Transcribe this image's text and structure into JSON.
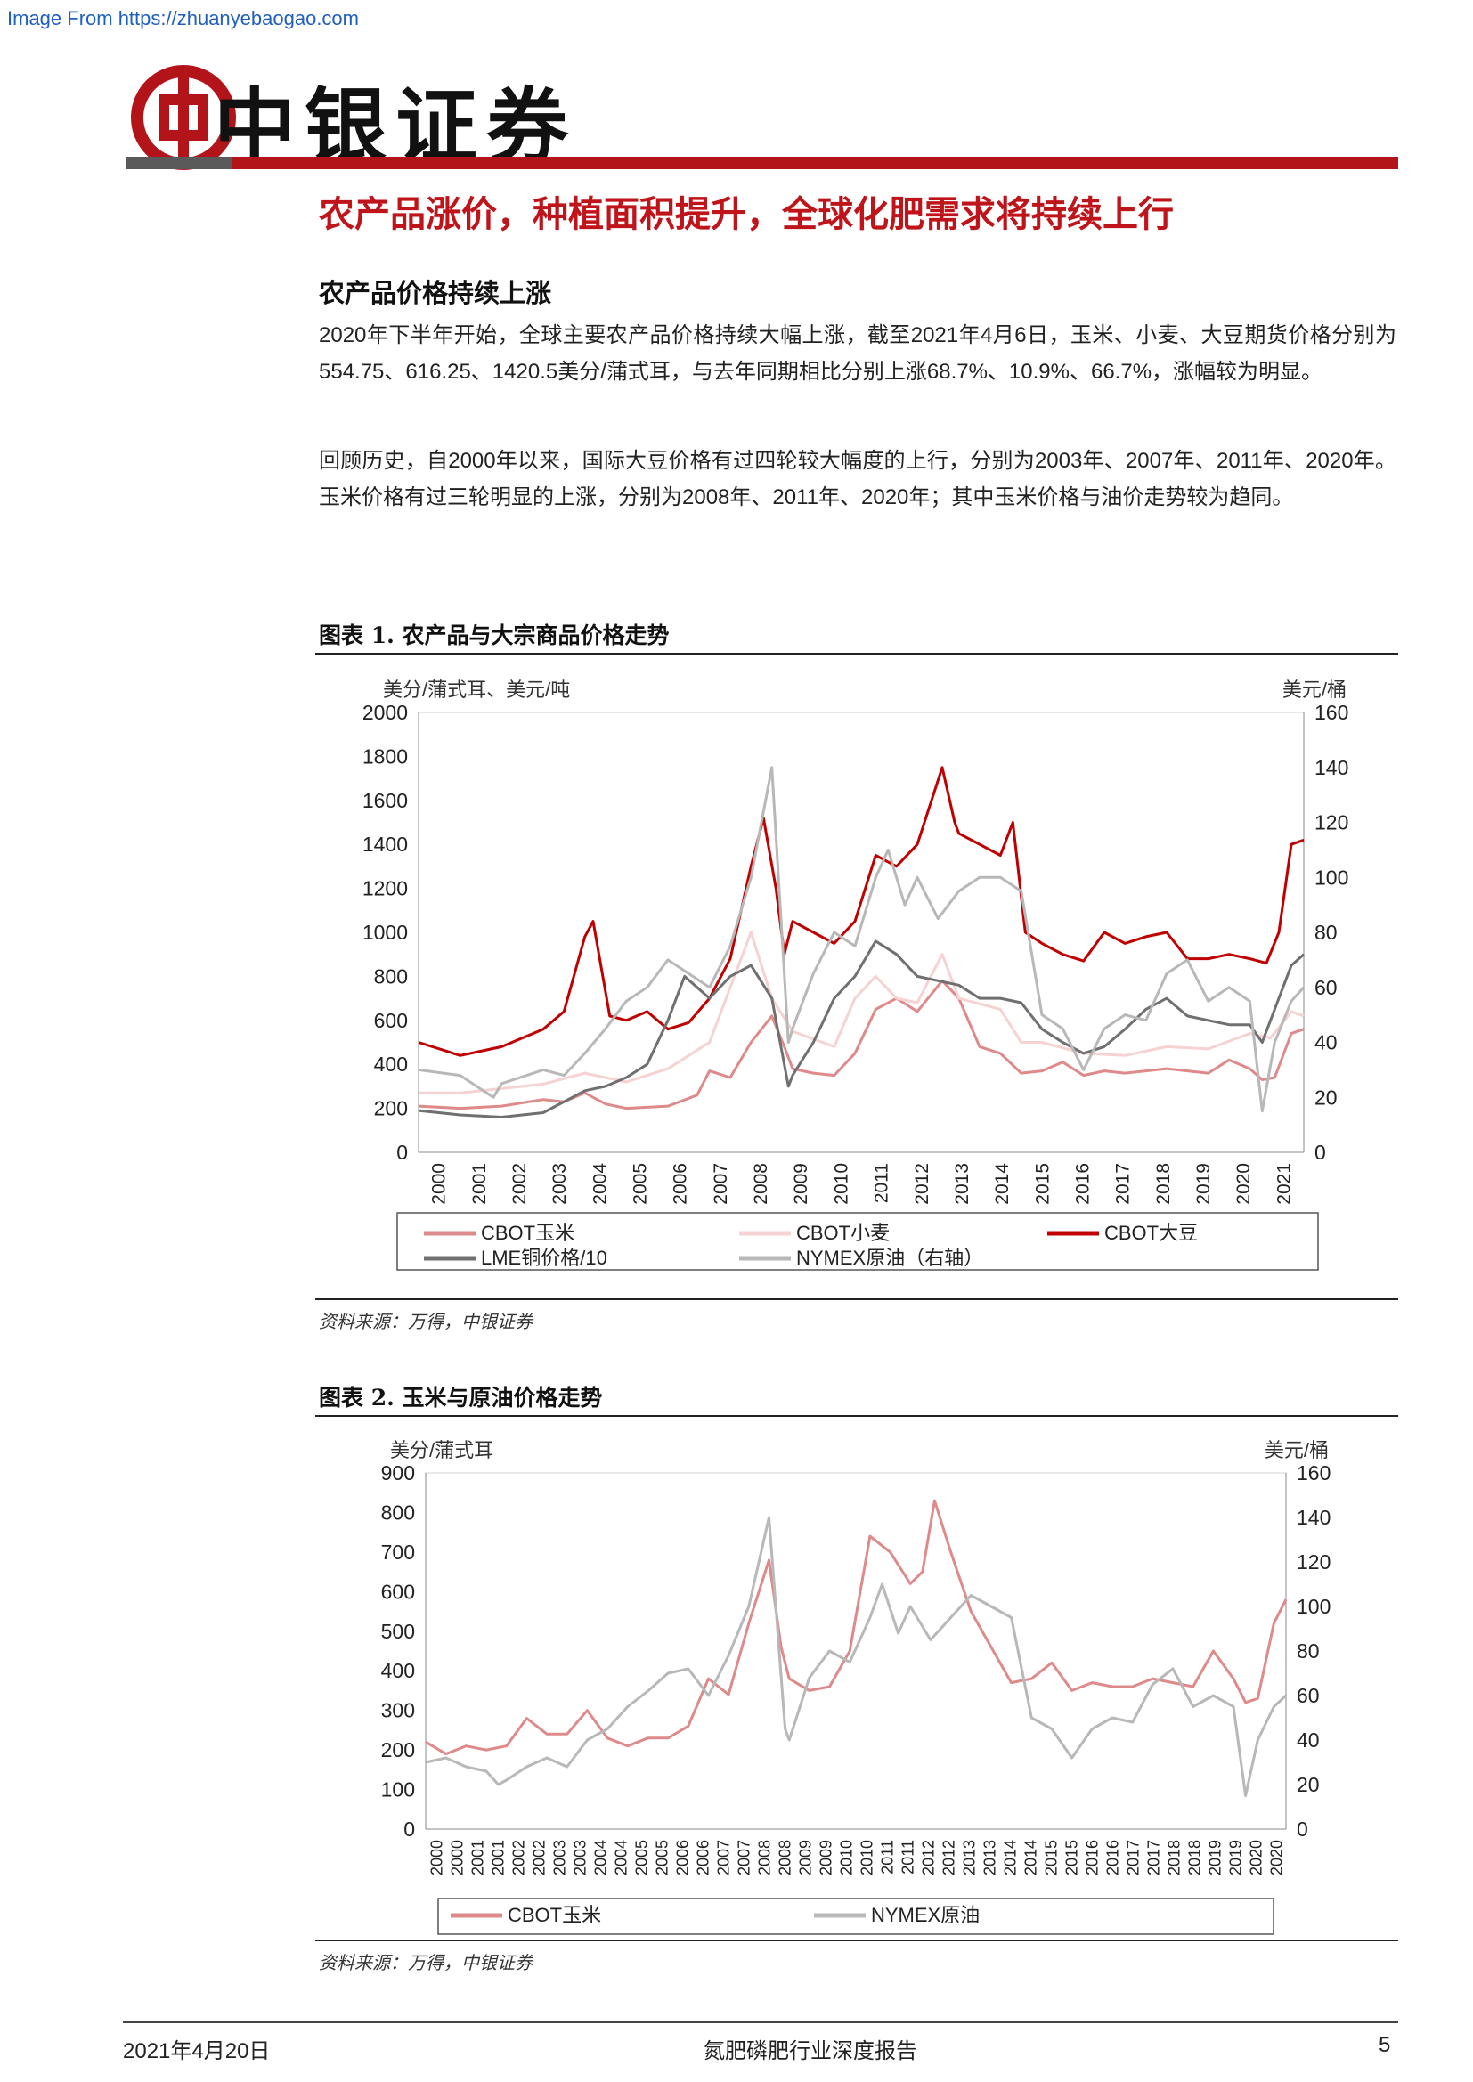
{
  "watermark": "Image From https://zhuanyebaogao.com",
  "header": {
    "brand": "中银证券"
  },
  "page_title": "农产品涨价，种植面积提升，全球化肥需求将持续上行",
  "section_title": "农产品价格持续上涨",
  "paragraphs": [
    "2020年下半年开始，全球主要农产品价格持续大幅上涨，截至2021年4月6日，玉米、小麦、大豆期货价格分别为554.75、616.25、1420.5美分/蒲式耳，与去年同期相比分别上涨68.7%、10.9%、66.7%，涨幅较为明显。",
    "回顾历史，自2000年以来，国际大豆价格有过四轮较大幅度的上行，分别为2003年、2007年、2011年、2020年。玉米价格有过三轮明显的上涨，分别为2008年、2011年、2020年；其中玉米价格与油价走势较为趋同。"
  ],
  "figures": [
    {
      "title": "图表 1. 农产品与大宗商品价格走势",
      "source": "资料来源：万得，中银证券"
    },
    {
      "title": "图表 2. 玉米与原油价格走势",
      "source": "资料来源：万得，中银证券"
    }
  ],
  "footer": {
    "date": "2021年4月20日",
    "report": "氮肥磷肥行业深度报告",
    "page": "5"
  },
  "colors": {
    "corn": "#df8a8a",
    "wheat": "#f6d2d2",
    "soy": "#c00000",
    "copper": "#707070",
    "oil": "#b8b8b8",
    "brand_red": "#b3141a"
  },
  "chart_data": [
    {
      "type": "line",
      "title": "图表 1. 农产品与大宗商品价格走势",
      "ylabel_left": "美分/蒲式耳、美元/吨",
      "ylabel_right": "美元/桶",
      "ylim_left": [
        0,
        2000
      ],
      "ylim_right": [
        0,
        160
      ],
      "yticks_left": [
        "2000",
        "1800",
        "1600",
        "1400",
        "1200",
        "1000",
        "800",
        "600",
        "400",
        "200",
        "0"
      ],
      "yticks_right": [
        "160",
        "140",
        "120",
        "100",
        "80",
        "60",
        "40",
        "20",
        "0"
      ],
      "x_ticks": [
        "2000",
        "2001",
        "2002",
        "2003",
        "2004",
        "2005",
        "2006",
        "2007",
        "2008",
        "2009",
        "2010",
        "2011",
        "2012",
        "2013",
        "2014",
        "2015",
        "2016",
        "2017",
        "2018",
        "2019",
        "2020",
        "2021"
      ],
      "x_range": [
        2000,
        2021.3
      ],
      "legend": [
        "CBOT玉米",
        "CBOT小麦",
        "CBOT大豆",
        "LME铜价格/10",
        "NYMEX原油（右轴）"
      ],
      "series": [
        {
          "name": "CBOT玉米",
          "color": "#df8a8a",
          "axis": "left",
          "x": [
            2000,
            2001,
            2002,
            2003,
            2003.5,
            2004,
            2004.5,
            2005,
            2006,
            2006.7,
            2007,
            2007.5,
            2008,
            2008.5,
            2008.8,
            2009,
            2009.5,
            2010,
            2010.5,
            2011,
            2011.5,
            2012,
            2012.6,
            2013,
            2013.5,
            2014,
            2014.5,
            2015,
            2015.5,
            2016,
            2016.5,
            2017,
            2017.5,
            2018,
            2018.5,
            2019,
            2019.5,
            2020,
            2020.3,
            2020.6,
            2021,
            2021.3
          ],
          "y": [
            210,
            200,
            210,
            240,
            230,
            270,
            220,
            200,
            210,
            260,
            370,
            340,
            500,
            620,
            480,
            380,
            360,
            350,
            450,
            650,
            700,
            640,
            780,
            700,
            480,
            450,
            360,
            370,
            410,
            350,
            370,
            360,
            370,
            380,
            370,
            360,
            420,
            380,
            330,
            340,
            540,
            560
          ]
        },
        {
          "name": "CBOT小麦",
          "color": "#f6d2d2",
          "axis": "left",
          "x": [
            2000,
            2001,
            2002,
            2003,
            2004,
            2005,
            2006,
            2007,
            2007.6,
            2008,
            2008.5,
            2009,
            2010,
            2010.5,
            2011,
            2011.5,
            2012,
            2012.6,
            2013,
            2014,
            2014.5,
            2015,
            2016,
            2017,
            2018,
            2019,
            2020,
            2020.5,
            2021,
            2021.3
          ],
          "y": [
            270,
            270,
            290,
            310,
            360,
            320,
            380,
            500,
            800,
            1000,
            700,
            550,
            480,
            700,
            800,
            700,
            680,
            900,
            700,
            650,
            500,
            500,
            450,
            440,
            480,
            470,
            540,
            520,
            640,
            620
          ]
        },
        {
          "name": "CBOT大豆",
          "color": "#c00000",
          "axis": "left",
          "x": [
            2000,
            2001,
            2001.5,
            2002,
            2003,
            2003.5,
            2004,
            2004.2,
            2004.6,
            2005,
            2005.5,
            2006,
            2006.5,
            2007,
            2007.5,
            2008,
            2008.3,
            2008.6,
            2008.8,
            2009,
            2009.5,
            2010,
            2010.5,
            2011,
            2011.5,
            2012,
            2012.6,
            2012.9,
            2013,
            2013.5,
            2014,
            2014.3,
            2014.6,
            2015,
            2015.5,
            2016,
            2016.5,
            2017,
            2017.5,
            2018,
            2018.5,
            2019,
            2019.5,
            2020,
            2020.4,
            2020.7,
            2021,
            2021.3
          ],
          "y": [
            500,
            440,
            460,
            480,
            560,
            640,
            980,
            1050,
            620,
            600,
            640,
            560,
            590,
            700,
            880,
            1300,
            1520,
            1200,
            900,
            1050,
            1000,
            950,
            1050,
            1350,
            1300,
            1400,
            1750,
            1500,
            1450,
            1400,
            1350,
            1500,
            1000,
            950,
            900,
            870,
            1000,
            950,
            980,
            1000,
            880,
            880,
            900,
            880,
            860,
            1000,
            1400,
            1420
          ]
        },
        {
          "name": "LME铜价格/10",
          "color": "#707070",
          "axis": "left",
          "x": [
            2000,
            2001,
            2002,
            2003,
            2004,
            2004.5,
            2005,
            2005.5,
            2006,
            2006.4,
            2007,
            2007.5,
            2008,
            2008.5,
            2008.9,
            2009,
            2009.5,
            2010,
            2010.5,
            2011,
            2011.5,
            2012,
            2012.5,
            2013,
            2013.5,
            2014,
            2014.5,
            2015,
            2015.5,
            2016,
            2016.5,
            2017,
            2017.5,
            2018,
            2018.5,
            2019,
            2019.5,
            2020,
            2020.3,
            2020.6,
            2021,
            2021.3
          ],
          "y": [
            190,
            170,
            160,
            180,
            280,
            300,
            340,
            400,
            600,
            800,
            700,
            800,
            850,
            700,
            300,
            350,
            500,
            700,
            800,
            960,
            900,
            800,
            780,
            760,
            700,
            700,
            680,
            560,
            500,
            450,
            480,
            560,
            650,
            700,
            620,
            600,
            580,
            580,
            500,
            650,
            850,
            900
          ]
        },
        {
          "name": "NYMEX原油（右轴）",
          "color": "#b8b8b8",
          "axis": "right",
          "x": [
            2000,
            2001,
            2001.8,
            2002,
            2003,
            2003.5,
            2004,
            2004.5,
            2005,
            2005.5,
            2006,
            2006.5,
            2007,
            2007.5,
            2008,
            2008.5,
            2008.9,
            2009,
            2009.5,
            2010,
            2010.5,
            2011,
            2011.3,
            2011.7,
            2012,
            2012.5,
            2013,
            2013.5,
            2014,
            2014.5,
            2015,
            2015.5,
            2016,
            2016.5,
            2017,
            2017.5,
            2018,
            2018.5,
            2019,
            2019.5,
            2020,
            2020.3,
            2020.6,
            2021,
            2021.3
          ],
          "y": [
            30,
            28,
            20,
            25,
            30,
            28,
            36,
            45,
            55,
            60,
            70,
            65,
            60,
            75,
            100,
            140,
            40,
            45,
            65,
            80,
            75,
            100,
            110,
            90,
            100,
            85,
            95,
            100,
            100,
            95,
            50,
            45,
            30,
            45,
            50,
            48,
            65,
            70,
            55,
            60,
            55,
            15,
            40,
            55,
            60
          ]
        }
      ]
    },
    {
      "type": "line",
      "title": "图表 2. 玉米与原油价格走势",
      "ylabel_left": "美分/蒲式耳",
      "ylabel_right": "美元/桶",
      "ylim_left": [
        0,
        900
      ],
      "ylim_right": [
        0,
        160
      ],
      "yticks_left": [
        "900",
        "800",
        "700",
        "600",
        "500",
        "400",
        "300",
        "200",
        "100",
        "0"
      ],
      "yticks_right": [
        "160",
        "140",
        "120",
        "100",
        "80",
        "60",
        "40",
        "20",
        "0"
      ],
      "x_ticks": [
        "2000",
        "2000",
        "2001",
        "2001",
        "2002",
        "2002",
        "2003",
        "2003",
        "2004",
        "2004",
        "2005",
        "2005",
        "2006",
        "2006",
        "2007",
        "2007",
        "2008",
        "2008",
        "2009",
        "2009",
        "2010",
        "2010",
        "2011",
        "2011",
        "2012",
        "2012",
        "2013",
        "2013",
        "2014",
        "2014",
        "2015",
        "2015",
        "2016",
        "2016",
        "2017",
        "2017",
        "2018",
        "2018",
        "2019",
        "2019",
        "2020",
        "2020"
      ],
      "x_range": [
        2000,
        2021.3
      ],
      "legend": [
        "CBOT玉米",
        "NYMEX原油"
      ],
      "series": [
        {
          "name": "CBOT玉米",
          "color": "#df8a8a",
          "axis": "left",
          "x": [
            2000,
            2000.5,
            2001,
            2001.5,
            2002,
            2002.5,
            2003,
            2003.5,
            2004,
            2004.5,
            2005,
            2005.5,
            2006,
            2006.5,
            2007,
            2007.5,
            2008,
            2008.5,
            2008.8,
            2009,
            2009.5,
            2010,
            2010.5,
            2011,
            2011.5,
            2012,
            2012.3,
            2012.6,
            2013,
            2013.5,
            2014,
            2014.5,
            2015,
            2015.5,
            2016,
            2016.5,
            2017,
            2017.5,
            2018,
            2018.5,
            2019,
            2019.5,
            2020,
            2020.3,
            2020.6,
            2021,
            2021.3
          ],
          "y": [
            220,
            190,
            210,
            200,
            210,
            280,
            240,
            240,
            300,
            230,
            210,
            230,
            230,
            260,
            380,
            340,
            520,
            680,
            460,
            380,
            350,
            360,
            450,
            740,
            700,
            620,
            650,
            830,
            700,
            550,
            460,
            370,
            380,
            420,
            350,
            370,
            360,
            360,
            380,
            370,
            360,
            450,
            380,
            320,
            330,
            520,
            580
          ]
        },
        {
          "name": "NYMEX原油",
          "color": "#b8b8b8",
          "axis": "right",
          "x": [
            2000,
            2000.5,
            2001,
            2001.5,
            2001.8,
            2002,
            2002.5,
            2003,
            2003.5,
            2004,
            2004.5,
            2005,
            2005.5,
            2006,
            2006.5,
            2007,
            2007.5,
            2008,
            2008.5,
            2008.9,
            2009,
            2009.5,
            2010,
            2010.5,
            2011,
            2011.3,
            2011.7,
            2012,
            2012.5,
            2013,
            2013.5,
            2014,
            2014.5,
            2015,
            2015.5,
            2016,
            2016.5,
            2017,
            2017.5,
            2018,
            2018.5,
            2019,
            2019.5,
            2020,
            2020.3,
            2020.6,
            2021,
            2021.3
          ],
          "y": [
            30,
            32,
            28,
            26,
            20,
            22,
            28,
            32,
            28,
            40,
            45,
            55,
            62,
            70,
            72,
            60,
            78,
            100,
            140,
            45,
            40,
            68,
            80,
            75,
            95,
            110,
            88,
            100,
            85,
            95,
            105,
            100,
            95,
            50,
            45,
            32,
            45,
            50,
            48,
            65,
            72,
            55,
            60,
            55,
            15,
            40,
            55,
            60
          ]
        }
      ]
    }
  ]
}
